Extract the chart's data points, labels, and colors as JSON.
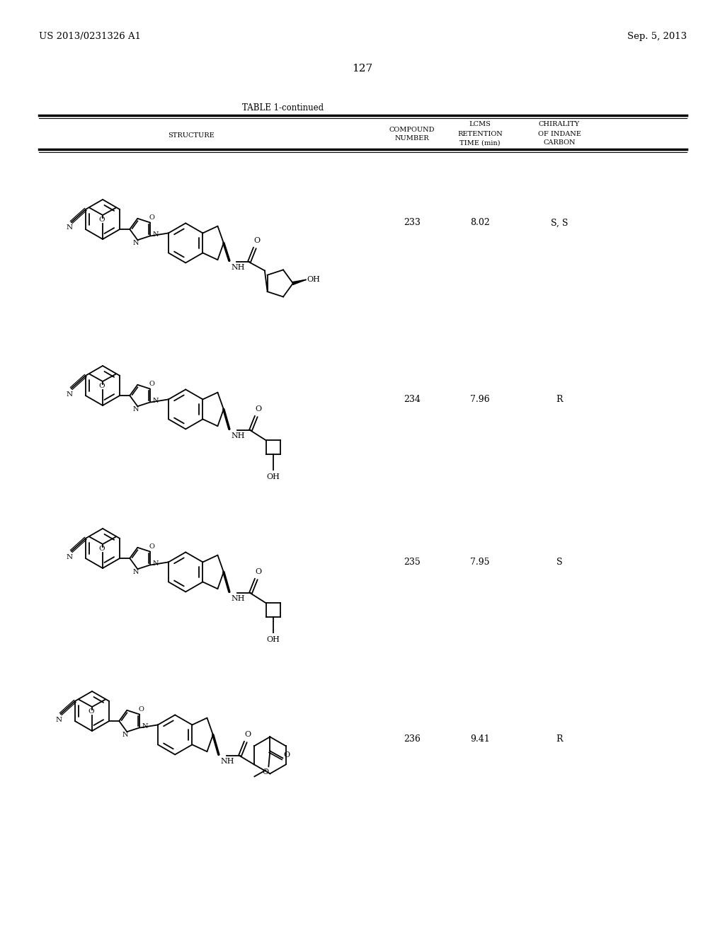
{
  "page_number": "127",
  "left_header": "US 2013/0231326 A1",
  "right_header": "Sep. 5, 2013",
  "table_title": "TABLE 1-continued",
  "col_headers_structure": "STRUCTURE",
  "col_headers_compound": [
    "COMPOUND",
    "NUMBER"
  ],
  "col_headers_lcms": [
    "LCMS",
    "RETENTION",
    "TIME (min)"
  ],
  "col_headers_chirality": [
    "CHIRALITY",
    "OF INDANE",
    "CARBON"
  ],
  "rows": [
    {
      "compound_number": "233",
      "retention_time": "8.02",
      "chirality": "S, S"
    },
    {
      "compound_number": "234",
      "retention_time": "7.96",
      "chirality": "R"
    },
    {
      "compound_number": "235",
      "retention_time": "7.95",
      "chirality": "S"
    },
    {
      "compound_number": "236",
      "retention_time": "9.41",
      "chirality": "R"
    }
  ],
  "background_color": "#ffffff",
  "text_color": "#000000"
}
